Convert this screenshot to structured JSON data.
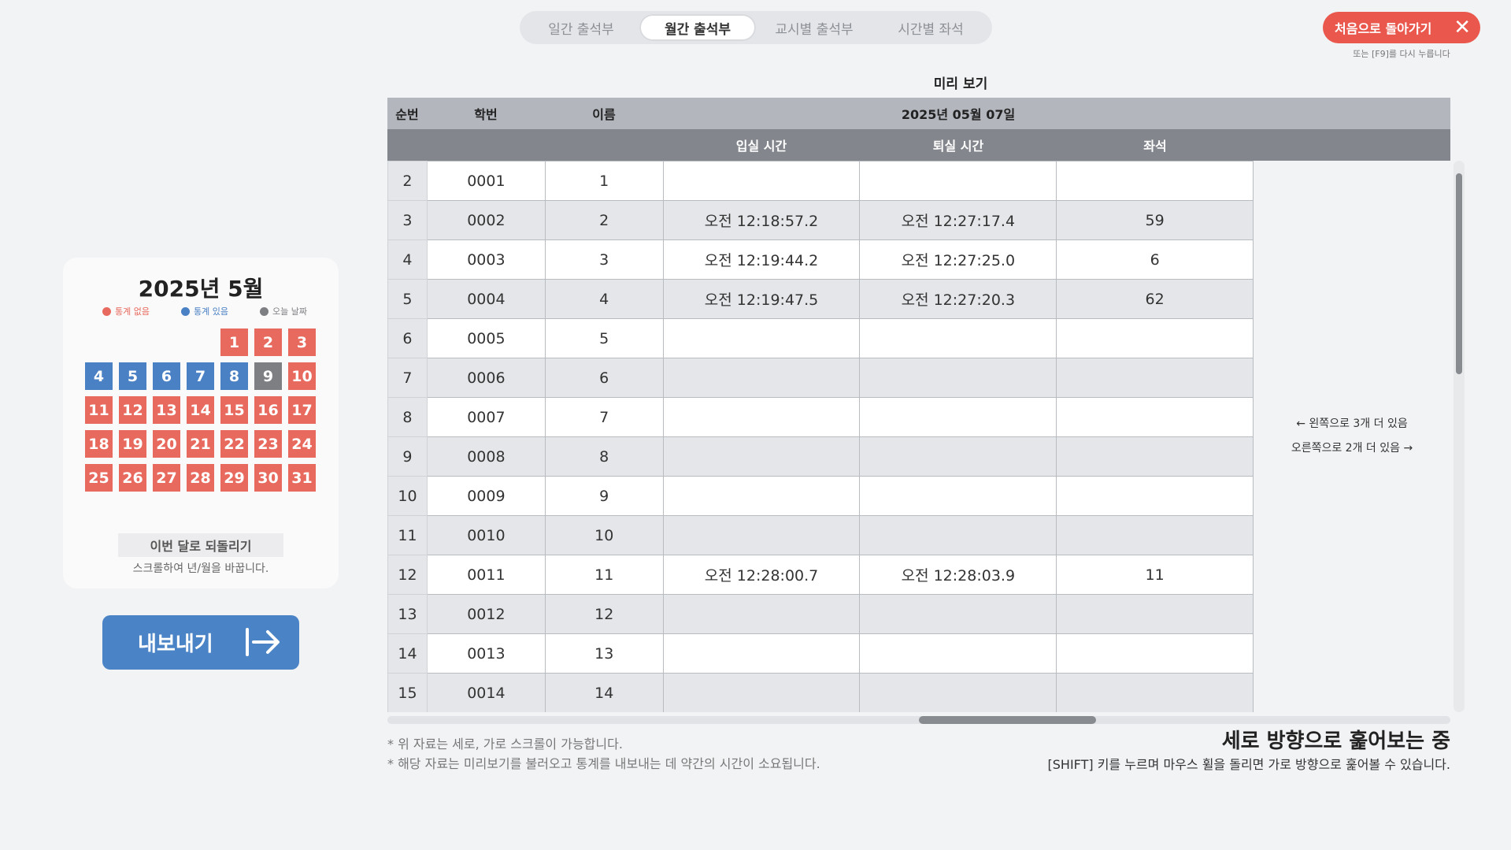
{
  "tabs": [
    {
      "label": "일간 출석부",
      "active": false
    },
    {
      "label": "월간 출석부",
      "active": true
    },
    {
      "label": "교시별 출석부",
      "active": false
    },
    {
      "label": "시간별 좌석",
      "active": false
    }
  ],
  "back_button": {
    "label": "처음으로 돌아가기",
    "hint": "또는 [F9]를 다시 누릅니다"
  },
  "preview_title": "미리 보기",
  "calendar": {
    "title": "2025년 5월",
    "legend": [
      {
        "label": "통계 없음",
        "color": "#e8695d"
      },
      {
        "label": "통계 있음",
        "color": "#4a80c4"
      },
      {
        "label": "오늘 날짜",
        "color": "#7d7f83"
      }
    ],
    "leading_blanks": 4,
    "days": [
      {
        "d": "1",
        "s": "red"
      },
      {
        "d": "2",
        "s": "red"
      },
      {
        "d": "3",
        "s": "red"
      },
      {
        "d": "4",
        "s": "blue"
      },
      {
        "d": "5",
        "s": "blue"
      },
      {
        "d": "6",
        "s": "blue"
      },
      {
        "d": "7",
        "s": "blue"
      },
      {
        "d": "8",
        "s": "blue"
      },
      {
        "d": "9",
        "s": "gray"
      },
      {
        "d": "10",
        "s": "red"
      },
      {
        "d": "11",
        "s": "red"
      },
      {
        "d": "12",
        "s": "red"
      },
      {
        "d": "13",
        "s": "red"
      },
      {
        "d": "14",
        "s": "red"
      },
      {
        "d": "15",
        "s": "red"
      },
      {
        "d": "16",
        "s": "red"
      },
      {
        "d": "17",
        "s": "red"
      },
      {
        "d": "18",
        "s": "red"
      },
      {
        "d": "19",
        "s": "red"
      },
      {
        "d": "20",
        "s": "red"
      },
      {
        "d": "21",
        "s": "red"
      },
      {
        "d": "22",
        "s": "red"
      },
      {
        "d": "23",
        "s": "red"
      },
      {
        "d": "24",
        "s": "red"
      },
      {
        "d": "25",
        "s": "red"
      },
      {
        "d": "26",
        "s": "red"
      },
      {
        "d": "27",
        "s": "red"
      },
      {
        "d": "28",
        "s": "red"
      },
      {
        "d": "29",
        "s": "red"
      },
      {
        "d": "30",
        "s": "red"
      },
      {
        "d": "31",
        "s": "red"
      }
    ],
    "reset_label": "이번 달로 되돌리기",
    "scroll_hint": "스크롤하여 년/월을 바꿉니다."
  },
  "export_button": {
    "label": "내보내기"
  },
  "table": {
    "headers": {
      "order": "순번",
      "student_id": "학번",
      "name": "이름",
      "date": "2025년 05월 07일"
    },
    "subheaders": {
      "entry": "입실 시간",
      "exit": "퇴실 시간",
      "seat": "좌석"
    },
    "rows": [
      {
        "order": "2",
        "id": "0001",
        "name": "1",
        "entry": "",
        "exit": "",
        "seat": ""
      },
      {
        "order": "3",
        "id": "0002",
        "name": "2",
        "entry": "오전 12:18:57.2",
        "exit": "오전 12:27:17.4",
        "seat": "59"
      },
      {
        "order": "4",
        "id": "0003",
        "name": "3",
        "entry": "오전 12:19:44.2",
        "exit": "오전 12:27:25.0",
        "seat": "6"
      },
      {
        "order": "5",
        "id": "0004",
        "name": "4",
        "entry": "오전 12:19:47.5",
        "exit": "오전 12:27:20.3",
        "seat": "62"
      },
      {
        "order": "6",
        "id": "0005",
        "name": "5",
        "entry": "",
        "exit": "",
        "seat": ""
      },
      {
        "order": "7",
        "id": "0006",
        "name": "6",
        "entry": "",
        "exit": "",
        "seat": ""
      },
      {
        "order": "8",
        "id": "0007",
        "name": "7",
        "entry": "",
        "exit": "",
        "seat": ""
      },
      {
        "order": "9",
        "id": "0008",
        "name": "8",
        "entry": "",
        "exit": "",
        "seat": ""
      },
      {
        "order": "10",
        "id": "0009",
        "name": "9",
        "entry": "",
        "exit": "",
        "seat": ""
      },
      {
        "order": "11",
        "id": "0010",
        "name": "10",
        "entry": "",
        "exit": "",
        "seat": ""
      },
      {
        "order": "12",
        "id": "0011",
        "name": "11",
        "entry": "오전 12:28:00.7",
        "exit": "오전 12:28:03.9",
        "seat": "11"
      },
      {
        "order": "13",
        "id": "0012",
        "name": "12",
        "entry": "",
        "exit": "",
        "seat": ""
      },
      {
        "order": "14",
        "id": "0013",
        "name": "13",
        "entry": "",
        "exit": "",
        "seat": ""
      },
      {
        "order": "15",
        "id": "0014",
        "name": "14",
        "entry": "",
        "exit": "",
        "seat": ""
      }
    ],
    "more_left": "← 왼쪽으로 3개 더 있음",
    "more_right": "오른쪽으로 2개 더 있음 →"
  },
  "notes": [
    "* 위 자료는 세로, 가로 스크롤이 가능합니다.",
    "* 해당 자료는 미리보기를 불러오고 통계를 내보내는 데 약간의 시간이 소요됩니다."
  ],
  "scroll_mode": {
    "title": "세로 방향으로 훑어보는 중",
    "subtitle": "[SHIFT] 키를 누르며 마우스 휠을 돌리면 가로 방향으로 훑어볼 수 있습니다."
  }
}
